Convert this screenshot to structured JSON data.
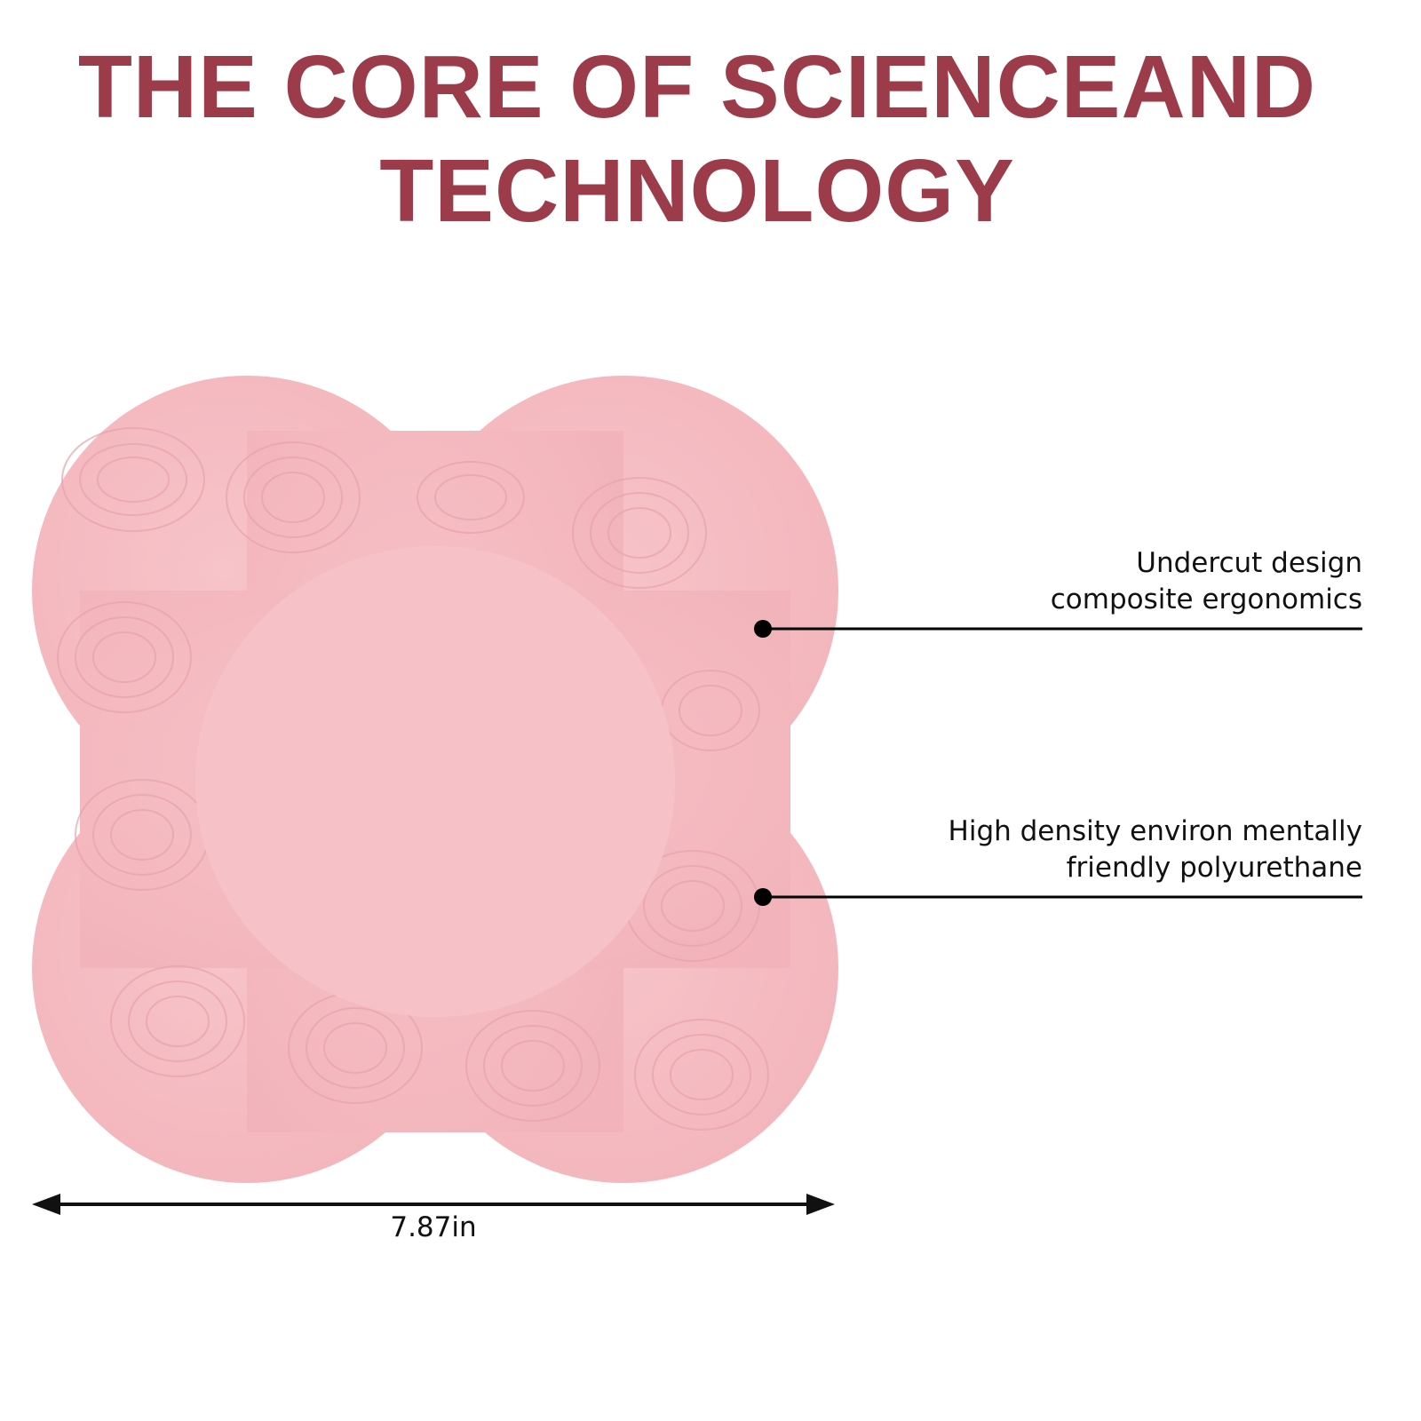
{
  "title": {
    "line1": "THE CORE OF SCIENCEAND",
    "line2": "TECHNOLOGY"
  },
  "callouts": [
    {
      "line1": "Undercut design",
      "line2": "composite ergonomics"
    },
    {
      "line1": "High density environ mentally",
      "line2": "friendly polyurethane"
    }
  ],
  "dimension": {
    "label": "7.87in"
  },
  "colors": {
    "title": "#9c3b4a",
    "pad": "#f5bcc2",
    "pad_center": "#f6c3c8",
    "lines": "#111111"
  }
}
